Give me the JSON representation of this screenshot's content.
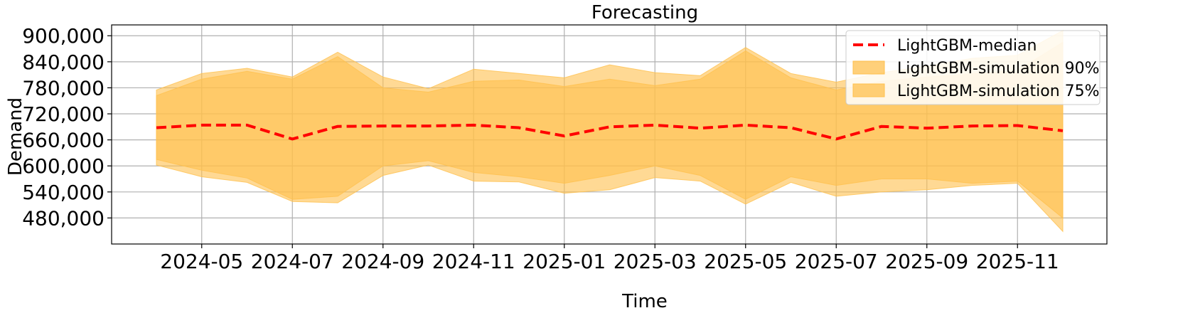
{
  "chart_data": {
    "type": "area",
    "title": "Forecasting",
    "xlabel": "Time",
    "ylabel": "Demand",
    "x": [
      "2024-04",
      "2024-05",
      "2024-06",
      "2024-07",
      "2024-08",
      "2024-09",
      "2024-10",
      "2024-11",
      "2024-12",
      "2025-01",
      "2025-02",
      "2025-03",
      "2025-04",
      "2025-05",
      "2025-06",
      "2025-07",
      "2025-08",
      "2025-09",
      "2025-10",
      "2025-11",
      "2025-12"
    ],
    "x_tick_labels": [
      "2024-05",
      "2024-07",
      "2024-09",
      "2024-11",
      "2025-01",
      "2025-03",
      "2025-05",
      "2025-07",
      "2025-09",
      "2025-11"
    ],
    "y_ticks": [
      480000,
      540000,
      600000,
      660000,
      720000,
      780000,
      840000,
      900000
    ],
    "y_tick_labels": [
      "480,000",
      "540,000",
      "600,000",
      "660,000",
      "720,000",
      "780,000",
      "840,000",
      "900,000"
    ],
    "ylim": [
      420000,
      925000
    ],
    "grid": true,
    "legend_position": "top-right",
    "series": [
      {
        "name": "LightGBM-median",
        "style": "dashed-line",
        "color": "#ff0000",
        "values": [
          688000,
          694000,
          694000,
          662000,
          691000,
          692000,
          692000,
          694000,
          688000,
          669000,
          690000,
          694000,
          687000,
          694000,
          688000,
          662000,
          691000,
          687000,
          692000,
          693000,
          681000
        ]
      },
      {
        "name": "LightGBM-simulation 90%",
        "style": "band",
        "color": "#ffc04d",
        "lower": [
          602000,
          575000,
          562000,
          518000,
          515000,
          578000,
          602000,
          565000,
          563000,
          537000,
          545000,
          573000,
          565000,
          512000,
          562000,
          530000,
          540000,
          545000,
          555000,
          560000,
          449000
        ],
        "upper": [
          775000,
          813000,
          825000,
          805000,
          862000,
          805000,
          778000,
          823000,
          813000,
          803000,
          833000,
          815000,
          808000,
          873000,
          813000,
          793000,
          815000,
          830000,
          848000,
          855000,
          912000
        ]
      },
      {
        "name": "LightGBM-simulation 75%",
        "style": "band",
        "color": "#ffc04d",
        "lower": [
          615000,
          590000,
          572000,
          523000,
          530000,
          600000,
          612000,
          585000,
          575000,
          560000,
          578000,
          600000,
          578000,
          523000,
          575000,
          555000,
          570000,
          570000,
          560000,
          565000,
          480000
        ],
        "upper": [
          762000,
          800000,
          818000,
          800000,
          852000,
          780000,
          770000,
          795000,
          798000,
          783000,
          800000,
          785000,
          800000,
          865000,
          803000,
          775000,
          795000,
          805000,
          812000,
          820000,
          885000
        ]
      }
    ]
  }
}
